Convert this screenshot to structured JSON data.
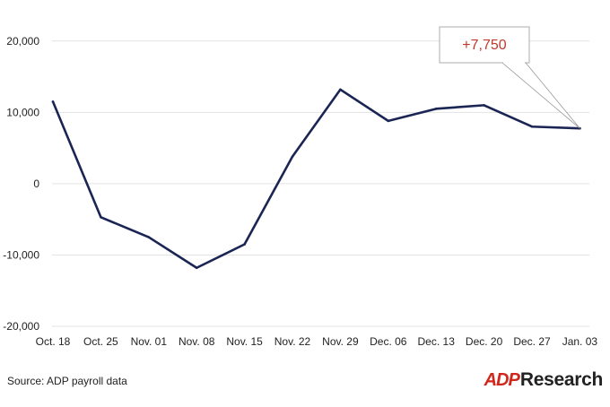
{
  "colors": {
    "line": "#1b2554",
    "callout_text": "#c0392b",
    "brand_red": "#d0271d",
    "grid": "#e3e3e3",
    "text": "#222222"
  },
  "chart_data": {
    "type": "line",
    "title": "",
    "xlabel": "",
    "ylabel": "",
    "categories": [
      "Oct. 18",
      "Oct. 25",
      "Nov. 01",
      "Nov. 08",
      "Nov. 15",
      "Nov. 22",
      "Nov. 29",
      "Dec. 06",
      "Dec. 13",
      "Dec. 20",
      "Dec. 27",
      "Jan. 03"
    ],
    "series": [
      {
        "values": [
          11500,
          -4700,
          -7500,
          -11800,
          -8500,
          3800,
          13200,
          8800,
          10500,
          11000,
          8000,
          7750
        ]
      }
    ],
    "ylim": [
      -20000,
      25000
    ],
    "yticks": [
      -20000,
      -10000,
      0,
      10000,
      20000
    ],
    "ytick_labels": [
      "-20,000",
      "-10,000",
      "0",
      "10,000",
      "20,000"
    ],
    "grid": true,
    "annotation": {
      "text": "+7,750",
      "point_index": 11
    }
  },
  "source": "Source: ADP payroll data",
  "logo": {
    "mark": "ADP",
    "text": "Research"
  }
}
